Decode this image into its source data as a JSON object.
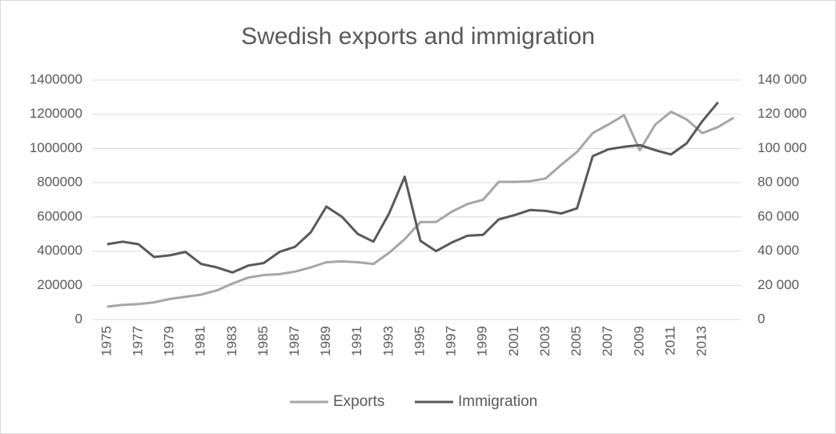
{
  "chart_data": {
    "type": "line",
    "title": "Swedish exports and immigration",
    "categories": [
      1975,
      null,
      1977,
      null,
      1979,
      null,
      1981,
      null,
      1983,
      null,
      1985,
      null,
      1987,
      null,
      1989,
      null,
      1991,
      null,
      1993,
      null,
      1995,
      null,
      1997,
      null,
      1999,
      null,
      2001,
      null,
      2003,
      null,
      2005,
      null,
      2007,
      null,
      2009,
      null,
      2011,
      null,
      2013,
      null,
      null
    ],
    "series": [
      {
        "name": "Exports",
        "color": "#a6a6a6",
        "axis": "y",
        "values": [
          75000,
          85000,
          90000,
          100000,
          120000,
          133000,
          145000,
          170000,
          210000,
          245000,
          260000,
          265000,
          280000,
          305000,
          335000,
          340000,
          335000,
          325000,
          390000,
          470000,
          570000,
          570000,
          630000,
          675000,
          700000,
          805000,
          805000,
          808000,
          825000,
          905000,
          980000,
          1090000,
          1140000,
          1195000,
          990000,
          1140000,
          1215000,
          1170000,
          1090000,
          1125000,
          1180000
        ]
      },
      {
        "name": "Immigration",
        "color": "#595959",
        "axis": "y2",
        "values": [
          44000,
          45500,
          44000,
          36500,
          37500,
          39500,
          32500,
          30500,
          27500,
          31500,
          33000,
          39500,
          42500,
          51000,
          66000,
          60000,
          50000,
          45500,
          62000,
          83500,
          46000,
          40000,
          45000,
          49000,
          49500,
          58500,
          61000,
          64000,
          63500,
          62000,
          65000,
          95500,
          99500,
          101000,
          102000,
          99000,
          96500,
          103000,
          116000,
          127000,
          null
        ]
      }
    ],
    "ylim": [
      0,
      1400000
    ],
    "yticks": [
      0,
      200000,
      400000,
      600000,
      800000,
      1000000,
      1200000,
      1400000
    ],
    "y2lim": [
      0,
      140000
    ],
    "y2ticks": [
      0,
      {
        "value": 20000,
        "label": "20 000"
      },
      {
        "value": 40000,
        "label": "40 000"
      },
      {
        "value": 60000,
        "label": "60 000"
      },
      {
        "value": 80000,
        "label": "80 000"
      },
      {
        "value": 100000,
        "label": "100 000"
      },
      {
        "value": 120000,
        "label": "120 000"
      },
      {
        "value": 140000,
        "label": "140 000"
      }
    ],
    "grid": true,
    "legend": "bottom"
  }
}
